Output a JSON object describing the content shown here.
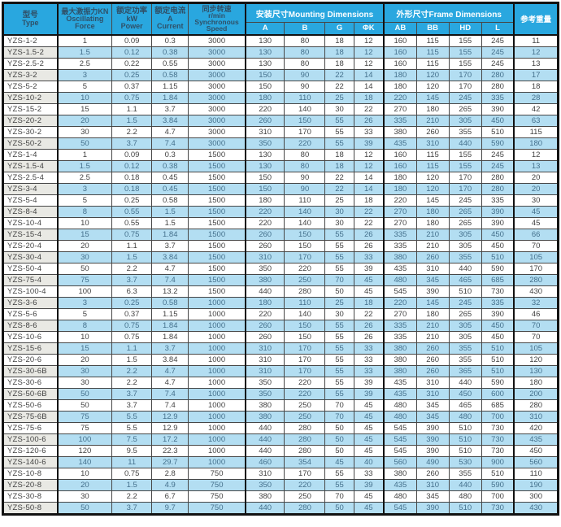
{
  "colors": {
    "header_bg": "#29a7df",
    "header_text_dark": "#2f5068",
    "header_text_light": "#fbfeff",
    "stripe_blue": "#b3def2",
    "stripe_gray": "#e9e9e4",
    "grid_line": "#474747",
    "outer_border": "#121212",
    "text": "#424242",
    "stripe_text": "#44708c"
  },
  "table": {
    "header": {
      "type": {
        "zh": "型号",
        "en": "Type"
      },
      "force": {
        "zh": "最大激振力KN",
        "en1": "Oscillating",
        "en2": "Force"
      },
      "power": {
        "zh": "额定功率",
        "unit": "kW",
        "en": "Power"
      },
      "current": {
        "zh": "额定电流",
        "unit": "A",
        "en": "Current"
      },
      "speed": {
        "zh": "同步转速",
        "unit": "r/min",
        "en1": "Synchronous",
        "en2": "Speed"
      },
      "mounting_group": "安装尺寸Mounting Dimensions",
      "frame_group": "外形尺寸Frame Dimensions",
      "weight": "参考重量",
      "mounting_cols": [
        "A",
        "B",
        "G",
        "ΦK"
      ],
      "frame_cols": [
        "AB",
        "BB",
        "HD",
        "L"
      ]
    },
    "rows": [
      [
        "YZS-1-2",
        "1",
        "0.09",
        "0.3",
        "3000",
        "130",
        "80",
        "18",
        "12",
        "160",
        "115",
        "155",
        "245",
        "11"
      ],
      [
        "YZS-1.5-2",
        "1.5",
        "0.12",
        "0.38",
        "3000",
        "130",
        "80",
        "18",
        "12",
        "160",
        "115",
        "155",
        "245",
        "12"
      ],
      [
        "YZS-2.5-2",
        "2.5",
        "0.22",
        "0.55",
        "3000",
        "130",
        "80",
        "18",
        "12",
        "160",
        "115",
        "155",
        "245",
        "13"
      ],
      [
        "YZS-3-2",
        "3",
        "0.25",
        "0.58",
        "3000",
        "150",
        "90",
        "22",
        "14",
        "180",
        "120",
        "170",
        "280",
        "17"
      ],
      [
        "YZS-5-2",
        "5",
        "0.37",
        "1.15",
        "3000",
        "150",
        "90",
        "22",
        "14",
        "180",
        "120",
        "170",
        "280",
        "18"
      ],
      [
        "YZS-10-2",
        "10",
        "0.75",
        "1.84",
        "3000",
        "180",
        "110",
        "25",
        "18",
        "220",
        "145",
        "245",
        "335",
        "28"
      ],
      [
        "YZS-15-2",
        "15",
        "1.1",
        "3.7",
        "3000",
        "220",
        "140",
        "30",
        "22",
        "270",
        "180",
        "265",
        "390",
        "42"
      ],
      [
        "YZS-20-2",
        "20",
        "1.5",
        "3.84",
        "3000",
        "260",
        "150",
        "55",
        "26",
        "335",
        "210",
        "305",
        "450",
        "63"
      ],
      [
        "YZS-30-2",
        "30",
        "2.2",
        "4.7",
        "3000",
        "310",
        "170",
        "55",
        "33",
        "380",
        "260",
        "355",
        "510",
        "115"
      ],
      [
        "YZS-50-2",
        "50",
        "3.7",
        "7.4",
        "3000",
        "350",
        "220",
        "55",
        "39",
        "435",
        "310",
        "440",
        "590",
        "180"
      ],
      [
        "YZS-1-4",
        "1",
        "0.09",
        "0.3",
        "1500",
        "130",
        "80",
        "18",
        "12",
        "160",
        "115",
        "155",
        "245",
        "12"
      ],
      [
        "YZS-1.5-4",
        "1.5",
        "0.12",
        "0.38",
        "1500",
        "130",
        "80",
        "18",
        "12",
        "160",
        "115",
        "155",
        "245",
        "13"
      ],
      [
        "YZS-2.5-4",
        "2.5",
        "0.18",
        "0.45",
        "1500",
        "150",
        "90",
        "22",
        "14",
        "180",
        "120",
        "170",
        "280",
        "20"
      ],
      [
        "YZS-3-4",
        "3",
        "0.18",
        "0.45",
        "1500",
        "150",
        "90",
        "22",
        "14",
        "180",
        "120",
        "170",
        "280",
        "20"
      ],
      [
        "YZS-5-4",
        "5",
        "0.25",
        "0.58",
        "1500",
        "180",
        "110",
        "25",
        "18",
        "220",
        "145",
        "245",
        "335",
        "30"
      ],
      [
        "YZS-8-4",
        "8",
        "0.55",
        "1.5",
        "1500",
        "220",
        "140",
        "30",
        "22",
        "270",
        "180",
        "265",
        "390",
        "45"
      ],
      [
        "YZS-10-4",
        "10",
        "0.55",
        "1.5",
        "1500",
        "220",
        "140",
        "30",
        "22",
        "270",
        "180",
        "265",
        "390",
        "45"
      ],
      [
        "YZS-15-4",
        "15",
        "0.75",
        "1.84",
        "1500",
        "260",
        "150",
        "55",
        "26",
        "335",
        "210",
        "305",
        "450",
        "66"
      ],
      [
        "YZS-20-4",
        "20",
        "1.1",
        "3.7",
        "1500",
        "260",
        "150",
        "55",
        "26",
        "335",
        "210",
        "305",
        "450",
        "70"
      ],
      [
        "YZS-30-4",
        "30",
        "1.5",
        "3.84",
        "1500",
        "310",
        "170",
        "55",
        "33",
        "380",
        "260",
        "355",
        "510",
        "105"
      ],
      [
        "YZS-50-4",
        "50",
        "2.2",
        "4.7",
        "1500",
        "350",
        "220",
        "55",
        "39",
        "435",
        "310",
        "440",
        "590",
        "170"
      ],
      [
        "YZS-75-4",
        "75",
        "3.7",
        "7.4",
        "1500",
        "380",
        "250",
        "70",
        "45",
        "480",
        "345",
        "465",
        "685",
        "280"
      ],
      [
        "YZS-100-4",
        "100",
        "6.3",
        "13.2",
        "1500",
        "440",
        "280",
        "50",
        "45",
        "545",
        "390",
        "510",
        "730",
        "430"
      ],
      [
        "YZS-3-6",
        "3",
        "0.25",
        "0.58",
        "1000",
        "180",
        "110",
        "25",
        "18",
        "220",
        "145",
        "245",
        "335",
        "32"
      ],
      [
        "YZS-5-6",
        "5",
        "0.37",
        "1.15",
        "1000",
        "220",
        "140",
        "30",
        "22",
        "270",
        "180",
        "265",
        "390",
        "46"
      ],
      [
        "YZS-8-6",
        "8",
        "0.75",
        "1.84",
        "1000",
        "260",
        "150",
        "55",
        "26",
        "335",
        "210",
        "305",
        "450",
        "70"
      ],
      [
        "YZS-10-6",
        "10",
        "0.75",
        "1.84",
        "1000",
        "260",
        "150",
        "55",
        "26",
        "335",
        "210",
        "305",
        "450",
        "70"
      ],
      [
        "YZS-15-6",
        "15",
        "1.1",
        "3.7",
        "1000",
        "310",
        "170",
        "55",
        "33",
        "380",
        "260",
        "355",
        "510",
        "105"
      ],
      [
        "YZS-20-6",
        "20",
        "1.5",
        "3.84",
        "1000",
        "310",
        "170",
        "55",
        "33",
        "380",
        "260",
        "355",
        "510",
        "120"
      ],
      [
        "YZS-30-6B",
        "30",
        "2.2",
        "4.7",
        "1000",
        "310",
        "170",
        "55",
        "33",
        "380",
        "260",
        "365",
        "510",
        "130"
      ],
      [
        "YZS-30-6",
        "30",
        "2.2",
        "4.7",
        "1000",
        "350",
        "220",
        "55",
        "39",
        "435",
        "310",
        "440",
        "590",
        "180"
      ],
      [
        "YZS-50-6B",
        "50",
        "3.7",
        "7.4",
        "1000",
        "350",
        "220",
        "55",
        "39",
        "435",
        "310",
        "450",
        "600",
        "200"
      ],
      [
        "YZS-50-6",
        "50",
        "3.7",
        "7.4",
        "1000",
        "380",
        "250",
        "70",
        "45",
        "480",
        "345",
        "465",
        "685",
        "280"
      ],
      [
        "YZS-75-6B",
        "75",
        "5.5",
        "12.9",
        "1000",
        "380",
        "250",
        "70",
        "45",
        "480",
        "345",
        "480",
        "700",
        "310"
      ],
      [
        "YZS-75-6",
        "75",
        "5.5",
        "12.9",
        "1000",
        "440",
        "280",
        "50",
        "45",
        "545",
        "390",
        "510",
        "730",
        "420"
      ],
      [
        "YZS-100-6",
        "100",
        "7.5",
        "17.2",
        "1000",
        "440",
        "280",
        "50",
        "45",
        "545",
        "390",
        "510",
        "730",
        "435"
      ],
      [
        "YZS-120-6",
        "120",
        "9.5",
        "22.3",
        "1000",
        "440",
        "280",
        "50",
        "45",
        "545",
        "390",
        "510",
        "730",
        "450"
      ],
      [
        "YZS-140-6",
        "140",
        "11",
        "29.7",
        "1000",
        "460",
        "354",
        "45",
        "40",
        "560",
        "490",
        "530",
        "900",
        "560"
      ],
      [
        "YZS-10-8",
        "10",
        "0.75",
        "2.8",
        "750",
        "310",
        "170",
        "55",
        "33",
        "380",
        "260",
        "355",
        "510",
        "110"
      ],
      [
        "YZS-20-8",
        "20",
        "1.5",
        "4.9",
        "750",
        "350",
        "220",
        "55",
        "39",
        "435",
        "310",
        "440",
        "590",
        "190"
      ],
      [
        "YZS-30-8",
        "30",
        "2.2",
        "6.7",
        "750",
        "380",
        "250",
        "70",
        "45",
        "480",
        "345",
        "480",
        "700",
        "300"
      ],
      [
        "YZS-50-8",
        "50",
        "3.7",
        "9.7",
        "750",
        "440",
        "280",
        "50",
        "45",
        "545",
        "390",
        "510",
        "730",
        "430"
      ]
    ]
  }
}
